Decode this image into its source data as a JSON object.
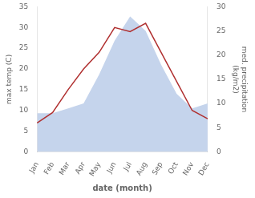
{
  "chart_data": {
    "type": "line",
    "categories": [
      "Jan",
      "Feb",
      "Mar",
      "Apr",
      "May",
      "Jun",
      "Jul",
      "Aug",
      "Sep",
      "Oct",
      "Nov",
      "Dec"
    ],
    "xlabel": "date (month)",
    "ylabel": "max temp (C)",
    "y2label": "med. precipitation\n(kg/m2)",
    "ylim": [
      0,
      35
    ],
    "yticks": [
      0,
      5,
      10,
      15,
      20,
      25,
      30,
      35
    ],
    "y2lim": [
      0,
      30
    ],
    "y2ticks": [
      0,
      5,
      10,
      15,
      20,
      25,
      30
    ],
    "grid": false,
    "series": [
      {
        "type": "area",
        "axis": "y2",
        "color": "#c5d4ec",
        "values": [
          8,
          8,
          9,
          10,
          16,
          23,
          28,
          25,
          18,
          12,
          9,
          10
        ]
      },
      {
        "type": "line",
        "color": "#b03030",
        "values": [
          7,
          9.5,
          15,
          20,
          24,
          30,
          29,
          31,
          24,
          17,
          10,
          8
        ]
      }
    ]
  }
}
